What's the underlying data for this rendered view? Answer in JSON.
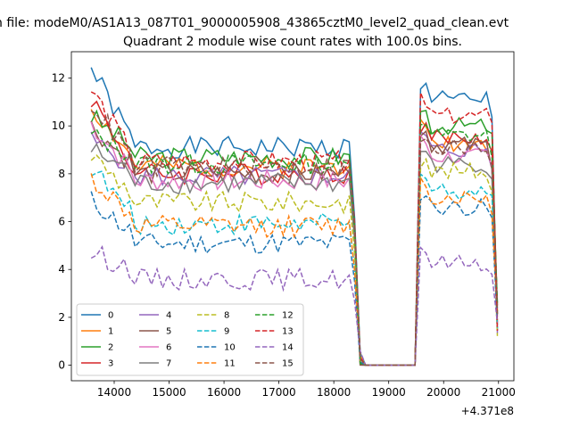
{
  "suptitle": "n file: modeM0/AS1A13_087T01_9000005908_43865cztM0_level2_quad_clean.evt",
  "chart_data": {
    "type": "line",
    "title": "Quadrant 2 module wise count rates with 100.0s bins.",
    "xlabel": "",
    "ylabel": "",
    "x_offset_label": "+4.371e8",
    "xlim": [
      13220,
      21280
    ],
    "ylim": [
      -0.65,
      13.1
    ],
    "x_ticks": [
      14000,
      15000,
      16000,
      17000,
      18000,
      19000,
      20000,
      21000
    ],
    "y_ticks": [
      0,
      2,
      4,
      6,
      8,
      10,
      12
    ],
    "legend_position": "lower-left",
    "legend_columns": 4,
    "x_start": 13580,
    "bin_width": 100,
    "x_end": 20980,
    "series": [
      {
        "name": "0",
        "color": "#1f77b4",
        "dash": "solid",
        "level": 9.1,
        "start": 12.4,
        "peak": 11.7,
        "drift": 0.25,
        "seed": 1
      },
      {
        "name": "1",
        "color": "#ff7f0e",
        "dash": "solid",
        "level": 8.3,
        "start": 10.8,
        "peak": 9.9,
        "drift": 0.25,
        "seed": 2
      },
      {
        "name": "2",
        "color": "#2ca02c",
        "dash": "solid",
        "level": 8.7,
        "start": 10.4,
        "peak": 10.6,
        "drift": 0.25,
        "seed": 3
      },
      {
        "name": "3",
        "color": "#d62728",
        "dash": "solid",
        "level": 8.0,
        "start": 11.2,
        "peak": 10.1,
        "drift": 0.25,
        "seed": 4
      },
      {
        "name": "4",
        "color": "#9467bd",
        "dash": "solid",
        "level": 7.9,
        "start": 9.4,
        "peak": 9.6,
        "drift": 0.25,
        "seed": 5
      },
      {
        "name": "5",
        "color": "#8c564b",
        "dash": "solid",
        "level": 8.0,
        "start": 10.0,
        "peak": 9.8,
        "drift": 0.25,
        "seed": 6
      },
      {
        "name": "6",
        "color": "#e377c2",
        "dash": "solid",
        "level": 7.7,
        "start": 10.1,
        "peak": 9.3,
        "drift": 0.25,
        "seed": 7
      },
      {
        "name": "7",
        "color": "#7f7f7f",
        "dash": "solid",
        "level": 7.6,
        "start": 9.0,
        "peak": 9.0,
        "drift": 0.25,
        "seed": 8
      },
      {
        "name": "8",
        "color": "#bcbd22",
        "dash": "dashed",
        "level": 6.8,
        "start": 8.8,
        "peak": 8.7,
        "drift": 0.25,
        "seed": 9
      },
      {
        "name": "9",
        "color": "#17becf",
        "dash": "dashed",
        "level": 5.9,
        "start": 8.3,
        "peak": 7.9,
        "drift": 0.25,
        "seed": 10
      },
      {
        "name": "10",
        "color": "#1f77b4",
        "dash": "dashed",
        "level": 5.1,
        "start": 6.9,
        "peak": 7.2,
        "drift": 0.2,
        "seed": 11
      },
      {
        "name": "11",
        "color": "#ff7f0e",
        "dash": "dashed",
        "level": 5.8,
        "start": 7.8,
        "peak": 7.6,
        "drift": 0.2,
        "seed": 12
      },
      {
        "name": "12",
        "color": "#2ca02c",
        "dash": "dashed",
        "level": 8.4,
        "start": 9.6,
        "peak": 10.2,
        "drift": 0.2,
        "seed": 13
      },
      {
        "name": "13",
        "color": "#d62728",
        "dash": "dashed",
        "level": 8.5,
        "start": 11.5,
        "peak": 11.0,
        "drift": 0.2,
        "seed": 14
      },
      {
        "name": "14",
        "color": "#9467bd",
        "dash": "dashed",
        "level": 3.6,
        "start": 4.7,
        "peak": 4.9,
        "drift": 0.15,
        "seed": 15
      },
      {
        "name": "15",
        "color": "#8c564b",
        "dash": "dashed",
        "level": 8.3,
        "start": 11.0,
        "peak": 9.7,
        "drift": 0.2,
        "seed": 16
      }
    ],
    "gap": {
      "drop_start": 18280,
      "zero_start": 18580,
      "zero_end": 19580,
      "rise_end": 19780,
      "value": 0
    }
  }
}
